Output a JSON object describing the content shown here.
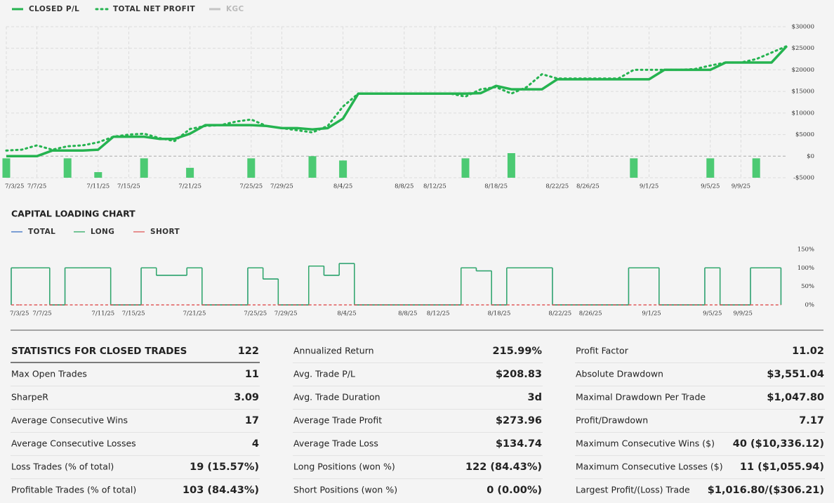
{
  "chart_data": [
    {
      "type": "line",
      "categories": [
        "7/3/25",
        null,
        "7/7/25",
        null,
        null,
        null,
        "7/11/25",
        null,
        "7/15/25",
        null,
        null,
        null,
        "7/21/25",
        null,
        null,
        null,
        "7/25/25",
        null,
        "7/29/25",
        null,
        null,
        null,
        "8/4/25",
        null,
        null,
        null,
        "8/8/25",
        null,
        "8/12/25",
        null,
        null,
        null,
        "8/18/25",
        null,
        null,
        null,
        "8/22/25",
        null,
        "8/26/25",
        null,
        null,
        null,
        "9/1/25",
        null,
        null,
        null,
        "9/5/25",
        null,
        "9/9/25",
        null,
        null,
        null
      ],
      "series": [
        {
          "name": "CLOSED P/L",
          "color": "#25b350",
          "style": "solid",
          "values": [
            0,
            0,
            0,
            1300,
            1300,
            1300,
            1500,
            4500,
            4500,
            4500,
            4000,
            4000,
            5200,
            7200,
            7200,
            7200,
            7200,
            7000,
            6500,
            6500,
            6200,
            6500,
            8700,
            14500,
            14500,
            14500,
            14500,
            14500,
            14500,
            14500,
            14500,
            14600,
            16300,
            15500,
            15500,
            15500,
            17800,
            17800,
            17800,
            17800,
            17800,
            17800,
            17800,
            20000,
            20000,
            20000,
            20000,
            21700,
            21700,
            21700,
            21700,
            25500
          ]
        },
        {
          "name": "TOTAL NET PROFIT",
          "color": "#25b350",
          "style": "dotted",
          "values": [
            1300,
            1500,
            2500,
            1500,
            2300,
            2500,
            3200,
            4500,
            5000,
            5200,
            4200,
            3500,
            6300,
            7000,
            7200,
            8000,
            8500,
            7000,
            6500,
            6000,
            5500,
            7000,
            11500,
            14500,
            14500,
            14500,
            14500,
            14500,
            14500,
            14500,
            13800,
            15500,
            16000,
            14500,
            16000,
            19000,
            18000,
            18000,
            18000,
            18000,
            18000,
            20000,
            20000,
            20000,
            20000,
            20200,
            21000,
            21700,
            21700,
            22500,
            24000,
            25500
          ]
        },
        {
          "name": "KGC",
          "color": "#c4c4c4",
          "visible": false
        }
      ],
      "bars": {
        "color": "#4cca73",
        "values": [
          -500,
          null,
          null,
          null,
          -500,
          null,
          -3700,
          null,
          null,
          -500,
          null,
          null,
          -2700,
          null,
          null,
          null,
          -500,
          null,
          null,
          null,
          0,
          null,
          -1000,
          null,
          null,
          null,
          null,
          null,
          null,
          null,
          -500,
          null,
          null,
          700,
          null,
          null,
          null,
          null,
          null,
          null,
          null,
          -500,
          null,
          null,
          null,
          null,
          -500,
          null,
          null,
          -500,
          null,
          null
        ]
      },
      "ylim": [
        -5000,
        30000
      ],
      "yticks": [
        {
          "value": -5000,
          "label": "-$5000"
        },
        {
          "value": 0,
          "label": "$0"
        },
        {
          "value": 5000,
          "label": "$5000"
        },
        {
          "value": 10000,
          "label": "$10000"
        },
        {
          "value": 15000,
          "label": "$15000"
        },
        {
          "value": 20000,
          "label": "$20000"
        },
        {
          "value": 25000,
          "label": "$25000"
        },
        {
          "value": 30000,
          "label": "$30000"
        }
      ],
      "grid": true
    },
    {
      "type": "step",
      "title": "CAPITAL LOADING CHART",
      "categories": [
        "7/3/25",
        null,
        "7/7/25",
        null,
        null,
        null,
        "7/11/25",
        null,
        "7/15/25",
        null,
        null,
        null,
        "7/21/25",
        null,
        null,
        null,
        "7/25/25",
        null,
        "7/29/25",
        null,
        null,
        null,
        "8/4/25",
        null,
        null,
        null,
        "8/8/25",
        null,
        "8/12/25",
        null,
        null,
        null,
        "8/18/25",
        null,
        null,
        null,
        "8/22/25",
        null,
        "8/26/25",
        null,
        null,
        null,
        "9/1/25",
        null,
        null,
        null,
        "9/5/25",
        null,
        "9/9/25",
        null,
        null
      ],
      "series": [
        {
          "name": "TOTAL",
          "color": "#3a6fc4",
          "style": "solid",
          "values": [
            100,
            100,
            100,
            0,
            100,
            100,
            100,
            0,
            0,
            100,
            80,
            80,
            100,
            0,
            0,
            0,
            100,
            70,
            0,
            0,
            105,
            80,
            112,
            0,
            0,
            0,
            0,
            0,
            0,
            0,
            100,
            92,
            0,
            100,
            100,
            100,
            0,
            0,
            0,
            0,
            0,
            100,
            100,
            0,
            0,
            0,
            100,
            0,
            0,
            100,
            100
          ]
        },
        {
          "name": "LONG",
          "color": "#2eaa64",
          "style": "solid",
          "values": [
            100,
            100,
            100,
            0,
            100,
            100,
            100,
            0,
            0,
            100,
            80,
            80,
            100,
            0,
            0,
            0,
            100,
            70,
            0,
            0,
            105,
            80,
            112,
            0,
            0,
            0,
            0,
            0,
            0,
            0,
            100,
            92,
            0,
            100,
            100,
            100,
            0,
            0,
            0,
            0,
            0,
            100,
            100,
            0,
            0,
            0,
            100,
            0,
            0,
            100,
            100
          ]
        },
        {
          "name": "SHORT",
          "color": "#e05a5a",
          "style": "dashed",
          "values": [
            0,
            0,
            0,
            0,
            0,
            0,
            0,
            0,
            0,
            0,
            0,
            0,
            0,
            0,
            0,
            0,
            0,
            0,
            0,
            0,
            0,
            0,
            0,
            0,
            0,
            0,
            0,
            0,
            0,
            0,
            0,
            0,
            0,
            0,
            0,
            0,
            0,
            0,
            0,
            0,
            0,
            0,
            0,
            0,
            0,
            0,
            0,
            0,
            0,
            0,
            0
          ]
        }
      ],
      "ylim": [
        0,
        150
      ],
      "yticks": [
        {
          "value": 0,
          "label": "0%"
        },
        {
          "value": 50,
          "label": "50%"
        },
        {
          "value": 100,
          "label": "100%"
        },
        {
          "value": 150,
          "label": "150%"
        }
      ],
      "grid": false
    }
  ],
  "statistics": {
    "title": "STATISTICS FOR CLOSED TRADES",
    "total": "122",
    "columns": [
      [
        {
          "label": "Max Open Trades",
          "value": "11"
        },
        {
          "label": "SharpeR",
          "value": "3.09"
        },
        {
          "label": "Average Consecutive Wins",
          "value": "17"
        },
        {
          "label": "Average Consecutive Losses",
          "value": "4"
        },
        {
          "label": "Loss Trades (% of total)",
          "value": "19 (15.57%)"
        },
        {
          "label": "Profitable Trades (% of total)",
          "value": "103 (84.43%)"
        }
      ],
      [
        {
          "label": "Annualized Return",
          "value": "215.99%"
        },
        {
          "label": "Avg. Trade P/L",
          "value": "$208.83"
        },
        {
          "label": "Avg. Trade Duration",
          "value": "3d"
        },
        {
          "label": "Average Trade Profit",
          "value": "$273.96"
        },
        {
          "label": "Average Trade Loss",
          "value": "$134.74"
        },
        {
          "label": "Long Positions (won %)",
          "value": "122 (84.43%)"
        },
        {
          "label": "Short Positions (won %)",
          "value": "0 (0.00%)"
        }
      ],
      [
        {
          "label": "Profit Factor",
          "value": "11.02"
        },
        {
          "label": "Absolute Drawdown",
          "value": "$3,551.04"
        },
        {
          "label": "Maximal Drawdown Per Trade",
          "value": "$1,047.80"
        },
        {
          "label": "Profit/Drawdown",
          "value": "7.17"
        },
        {
          "label": "Maximum Consecutive Wins ($)",
          "value": "40 ($10,336.12)"
        },
        {
          "label": "Maximum Consecutive Losses ($)",
          "value": "11 ($1,055.94)"
        },
        {
          "label": "Largest Profit/(Loss) Trade",
          "value": "$1,016.80/($306.21)"
        }
      ]
    ]
  }
}
